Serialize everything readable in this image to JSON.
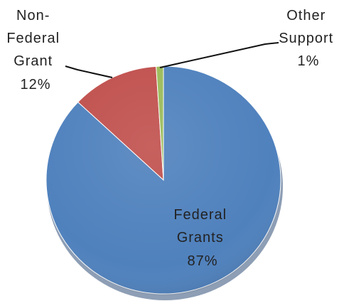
{
  "chart_data": {
    "type": "pie",
    "title": "",
    "slices": [
      {
        "label_lines": [
          "Federal",
          "Grants",
          "87%"
        ],
        "value": 87,
        "color": "#4F81BD"
      },
      {
        "label_lines": [
          "Non-",
          "Federal",
          "Grant",
          "12%"
        ],
        "value": 12,
        "color": "#C0504D"
      },
      {
        "label_lines": [
          "Other",
          "Support",
          "1%"
        ],
        "value": 1,
        "color": "#9BBB59"
      }
    ],
    "start_angle_deg": 0,
    "direction": "clockwise",
    "legend": "none",
    "style": "3d-shaded"
  }
}
